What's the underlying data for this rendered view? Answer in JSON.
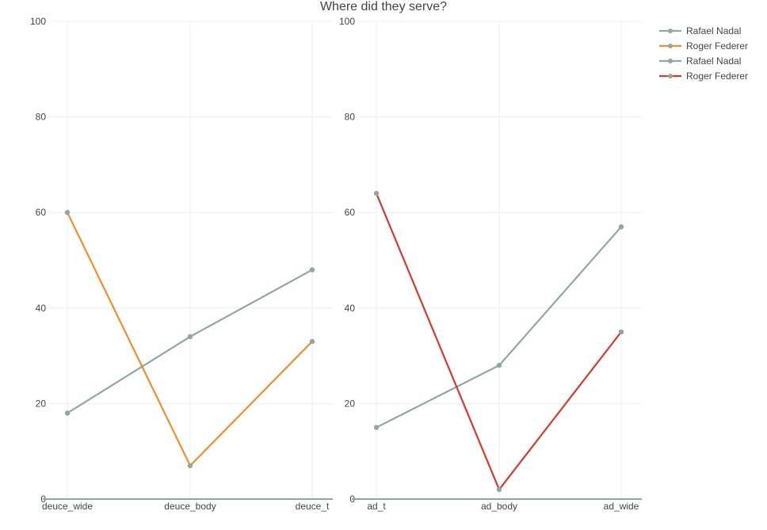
{
  "chart_data": {
    "type": "line",
    "title": "Where did they serve?",
    "ylim": [
      0,
      100
    ],
    "yticks": [
      0,
      20,
      40,
      60,
      80,
      100
    ],
    "marker_color": "#8fa8a0",
    "panels": [
      {
        "categories": [
          "deuce_wide",
          "deuce_body",
          "deuce_t"
        ],
        "series": [
          {
            "name": "Rafael Nadal",
            "color": "#8fa8a0",
            "values": [
              18,
              34,
              48
            ]
          },
          {
            "name": "Roger Federer",
            "color": "#f28e2b",
            "values": [
              60,
              7,
              33
            ]
          }
        ]
      },
      {
        "categories": [
          "ad_t",
          "ad_body",
          "ad_wide"
        ],
        "series": [
          {
            "name": "Rafael Nadal",
            "color": "#8fa8a0",
            "values": [
              15,
              28,
              57
            ]
          },
          {
            "name": "Roger Federer",
            "color": "#d63a2f",
            "values": [
              64,
              2,
              35
            ]
          }
        ]
      }
    ],
    "legend": {
      "position": "top-right",
      "items": [
        {
          "name": "Rafael Nadal",
          "color": "#8fa8a0"
        },
        {
          "name": "Roger Federer",
          "color": "#f28e2b"
        },
        {
          "name": "Rafael Nadal",
          "color": "#8fa8a0"
        },
        {
          "name": "Roger Federer",
          "color": "#d63a2f"
        }
      ]
    },
    "grid": true
  }
}
